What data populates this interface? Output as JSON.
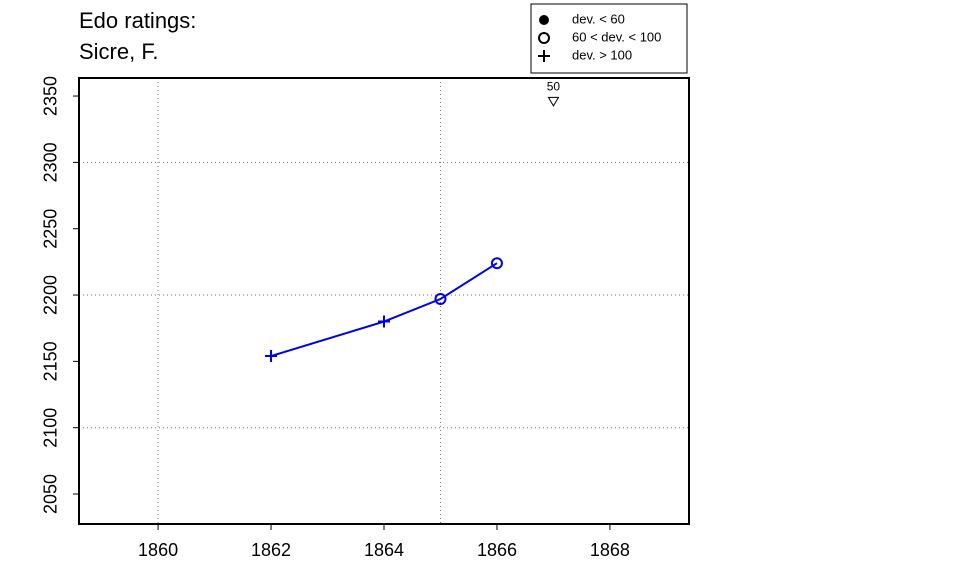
{
  "chart_data": {
    "type": "line",
    "title": [
      "Edo ratings:",
      "Sicre, F."
    ],
    "x": [
      1862,
      1864,
      1865,
      1866
    ],
    "series": [
      {
        "color": "#0000ee",
        "values": [
          2154,
          2180,
          2197,
          2224
        ],
        "markers": [
          "plus",
          "plus",
          "circle",
          "circle"
        ]
      }
    ],
    "xlim": [
      1858.6,
      1869.4
    ],
    "xticks": [
      1860,
      1862,
      1864,
      1866,
      1868
    ],
    "ylim": [
      2027.4,
      2363.6
    ],
    "yticks": [
      2050,
      2100,
      2150,
      2200,
      2250,
      2300,
      2350
    ],
    "xgrid": [
      1860,
      1865
    ],
    "ygrid": [
      2100,
      2200,
      2300
    ],
    "annotations": [
      {
        "x": 1867,
        "y": 2346,
        "label": "50",
        "marker": "triangle-down"
      }
    ],
    "legend": [
      {
        "marker": "filled-circle",
        "label": "dev. < 60"
      },
      {
        "marker": "circle",
        "label": "60 < dev. < 100"
      },
      {
        "marker": "plus",
        "label": "dev. > 100"
      }
    ]
  }
}
